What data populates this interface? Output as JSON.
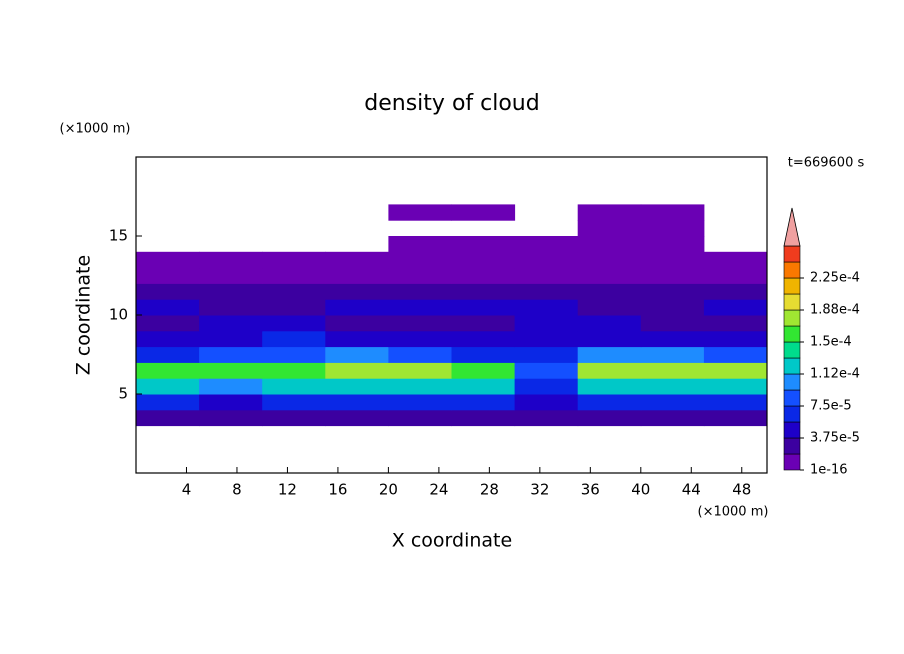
{
  "chart_data": {
    "type": "contour",
    "title": "density of cloud",
    "time_label": "t=669600 s",
    "xlabel": "X coordinate",
    "ylabel": "Z coordinate",
    "x_unit": "(×1000 m)",
    "y_unit": "(×1000 m)",
    "xlim": [
      0,
      50
    ],
    "xticks": [
      4,
      8,
      12,
      16,
      20,
      24,
      28,
      32,
      36,
      40,
      44,
      48
    ],
    "ylim": [
      0,
      20
    ],
    "yticks": [
      5,
      10,
      15
    ],
    "x_edges": [
      0,
      5,
      10,
      15,
      20,
      25,
      30,
      35,
      40,
      45,
      50
    ],
    "y_edges": [
      3,
      4,
      5,
      6,
      7,
      8,
      9,
      10,
      11,
      12,
      13,
      14,
      15,
      16,
      17
    ],
    "z": [
      [
        2.5e-05,
        3e-05,
        2.5e-05,
        3e-05,
        3e-05,
        3e-05,
        2e-05,
        3e-05,
        2.5e-05,
        3e-05
      ],
      [
        6e-05,
        5.5e-05,
        6e-05,
        6e-05,
        6.5e-05,
        6e-05,
        4e-05,
        6e-05,
        6e-05,
        6.5e-05
      ],
      [
        0.00012,
        0.00011,
        0.00012,
        0.00013,
        0.000125,
        0.00012,
        7e-05,
        0.00012,
        0.000125,
        0.00012
      ],
      [
        0.000165,
        0.000155,
        0.00016,
        0.000185,
        0.000175,
        0.00016,
        9e-05,
        0.00018,
        0.000175,
        0.00017
      ],
      [
        7e-05,
        8e-05,
        9e-05,
        0.0001,
        8e-05,
        7e-05,
        6e-05,
        0.00011,
        0.0001,
        9e-05
      ],
      [
        4e-05,
        5e-05,
        6e-05,
        5e-05,
        4.5e-05,
        4e-05,
        5e-05,
        5e-05,
        4.5e-05,
        5e-05
      ],
      [
        3e-05,
        4e-05,
        4e-05,
        3e-05,
        3.5e-05,
        3e-05,
        4e-05,
        4e-05,
        3e-05,
        3.5e-05
      ],
      [
        4e-05,
        3.5e-05,
        3e-05,
        4e-05,
        4e-05,
        4.5e-05,
        4e-05,
        3.5e-05,
        3e-05,
        4e-05
      ],
      [
        2.5e-05,
        2e-05,
        2.5e-05,
        2.5e-05,
        2e-05,
        2.5e-05,
        3e-05,
        2.5e-05,
        2e-05,
        2.5e-05
      ],
      [
        1e-05,
        1.5e-05,
        1e-05,
        1e-05,
        1.5e-05,
        1e-05,
        1.5e-05,
        1e-05,
        1e-05,
        1.5e-05
      ],
      [
        5e-06,
        5e-06,
        5e-06,
        5e-06,
        5e-06,
        5e-06,
        5e-06,
        5e-06,
        5e-06,
        5e-06
      ],
      [
        null,
        null,
        null,
        null,
        5e-06,
        5e-06,
        5e-06,
        5e-06,
        5e-06,
        null
      ],
      [
        null,
        null,
        null,
        null,
        null,
        null,
        null,
        5e-06,
        5e-06,
        null
      ],
      [
        null,
        null,
        null,
        null,
        5e-06,
        5e-06,
        null,
        5e-06,
        5e-06,
        null
      ]
    ],
    "clim": [
      1e-16,
      0.0002625
    ],
    "colors": [
      "#6a00b4",
      "#3c00a0",
      "#1e00c8",
      "#0a28e6",
      "#1450ff",
      "#1e8cff",
      "#00c8c8",
      "#00dc8c",
      "#32e632",
      "#a0e632",
      "#e6dc32",
      "#f0b400",
      "#fa7800",
      "#f03c1e"
    ],
    "over_color": "#f0a0a0",
    "cticks": [
      1e-16,
      {
        "value": 3.75e-05,
        "label": "3.75e-5"
      },
      {
        "value": 7.5e-05,
        "label": "7.5e-5"
      },
      {
        "value": 0.0001125,
        "label": "1.12e-4"
      },
      {
        "value": 0.00015,
        "label": "1.5e-4"
      },
      {
        "value": 0.0001875,
        "label": "1.88e-4"
      },
      {
        "value": 0.000225,
        "label": "2.25e-4"
      }
    ]
  }
}
